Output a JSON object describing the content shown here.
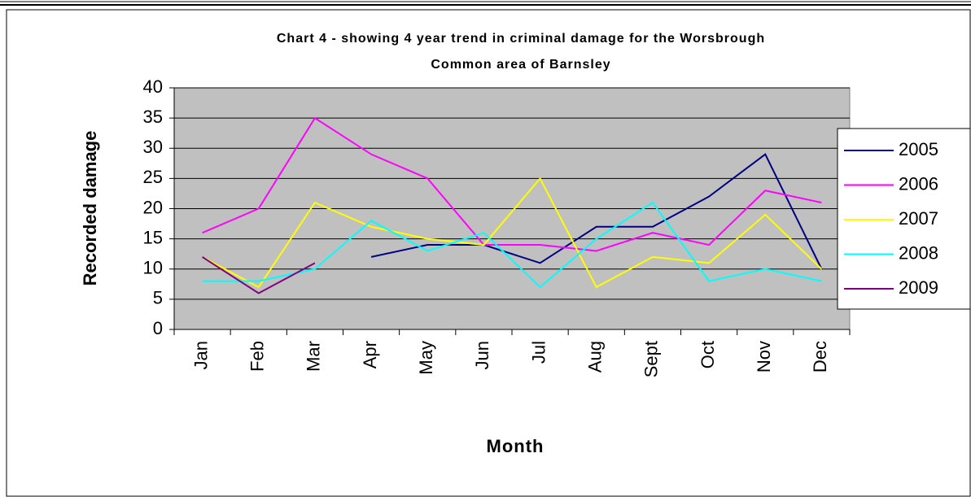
{
  "chart_data": {
    "type": "line",
    "title": [
      "Chart 4 - showing 4 year trend in criminal damage for the Worsbrough",
      "Common area of Barnsley"
    ],
    "x_label": "Month",
    "y_label": "Recorded damage",
    "categories": [
      "Jan",
      "Feb",
      "Mar",
      "Apr",
      "May",
      "Jun",
      "Jul",
      "Aug",
      "Sept",
      "Oct",
      "Nov",
      "Dec"
    ],
    "series": [
      {
        "name": "2005",
        "color": "#000080",
        "values": [
          null,
          null,
          null,
          12,
          14,
          14,
          11,
          17,
          17,
          22,
          29,
          10
        ]
      },
      {
        "name": "2006",
        "color": "#ff00ff",
        "values": [
          16,
          20,
          35,
          29,
          25,
          14,
          14,
          13,
          16,
          14,
          23,
          21
        ]
      },
      {
        "name": "2007",
        "color": "#ffff00",
        "values": [
          12,
          7,
          21,
          17,
          15,
          14,
          25,
          7,
          12,
          11,
          19,
          10
        ]
      },
      {
        "name": "2008",
        "color": "#00ffff",
        "values": [
          8,
          8,
          10,
          18,
          13,
          16,
          7,
          15,
          21,
          8,
          10,
          8
        ]
      },
      {
        "name": "2009",
        "color": "#800080",
        "values": [
          12,
          6,
          11,
          null,
          null,
          null,
          null,
          null,
          null,
          null,
          null,
          null
        ]
      }
    ],
    "ylim": [
      0,
      40
    ],
    "yticks": [
      0,
      5,
      10,
      15,
      20,
      25,
      30,
      35,
      40
    ],
    "grid": true,
    "legend": "right",
    "plot_background": "#c0c0c0"
  }
}
